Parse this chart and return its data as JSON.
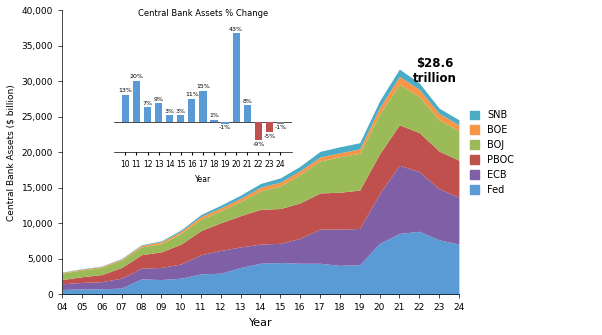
{
  "years": [
    2004,
    2005,
    2006,
    2007,
    2008,
    2009,
    2010,
    2011,
    2012,
    2013,
    2014,
    2015,
    2016,
    2017,
    2018,
    2019,
    2020,
    2021,
    2022,
    2023,
    2024
  ],
  "Fed": [
    700,
    800,
    800,
    900,
    2200,
    2100,
    2300,
    2900,
    3000,
    3800,
    4400,
    4500,
    4400,
    4400,
    4100,
    4200,
    7200,
    8600,
    8900,
    7700,
    7100
  ],
  "ECB": [
    800,
    900,
    1000,
    1400,
    1500,
    1700,
    2000,
    2700,
    3200,
    2900,
    2700,
    2700,
    3500,
    4800,
    5100,
    5100,
    7000,
    9600,
    8400,
    7200,
    6600
  ],
  "PBOC": [
    600,
    800,
    1000,
    1500,
    1900,
    2200,
    2800,
    3400,
    3900,
    4400,
    4900,
    4900,
    5000,
    5100,
    5200,
    5400,
    5600,
    5700,
    5500,
    5300,
    5200
  ],
  "BOJ": [
    900,
    950,
    1000,
    1050,
    1100,
    1150,
    1500,
    1600,
    1700,
    2000,
    2600,
    3200,
    4000,
    4500,
    5000,
    5200,
    5600,
    5700,
    5100,
    4400,
    4200
  ],
  "BOE": [
    100,
    110,
    120,
    130,
    200,
    280,
    300,
    380,
    400,
    440,
    500,
    520,
    530,
    550,
    550,
    600,
    900,
    1100,
    1000,
    900,
    800
  ],
  "SNB": [
    50,
    60,
    70,
    80,
    100,
    120,
    200,
    280,
    370,
    460,
    530,
    600,
    640,
    800,
    850,
    870,
    950,
    1050,
    900,
    750,
    700
  ],
  "colors": {
    "Fed": "#5B9BD5",
    "ECB": "#7F5FA6",
    "PBOC": "#C0504D",
    "BOJ": "#9BBB59",
    "BOE": "#F79646",
    "SNB": "#4BACC6"
  },
  "bar_years": [
    10,
    11,
    12,
    13,
    14,
    15,
    16,
    17,
    18,
    19,
    20,
    21,
    22,
    23,
    24
  ],
  "bar_values": [
    13,
    20,
    7,
    9,
    3,
    3,
    11,
    15,
    1,
    -1,
    43,
    8,
    -9,
    -5,
    -1
  ],
  "bar_colors_list": [
    "#5B9BD5",
    "#5B9BD5",
    "#5B9BD5",
    "#5B9BD5",
    "#5B9BD5",
    "#5B9BD5",
    "#5B9BD5",
    "#5B9BD5",
    "#5B9BD5",
    "#5B9BD5",
    "#5B9BD5",
    "#5B9BD5",
    "#C0504D",
    "#C0504D",
    "#808080"
  ],
  "annotation": "$28.6\ntrillion",
  "ylabel": "Central Bank Assets ($ billion)",
  "xlabel": "Year",
  "ylim": [
    0,
    40000
  ],
  "yticks": [
    0,
    5000,
    10000,
    15000,
    20000,
    25000,
    30000,
    35000,
    40000
  ],
  "ytick_labels": [
    "0",
    "5,000",
    "10,000",
    "15,000",
    "20,000",
    "25,000",
    "30,000",
    "35,000",
    "40,000"
  ],
  "inset_title": "Central Bank Assets % Change",
  "inset_xlabel": "Year",
  "legend_order": [
    "SNB",
    "BOE",
    "BOJ",
    "PBOC",
    "ECB",
    "Fed"
  ]
}
